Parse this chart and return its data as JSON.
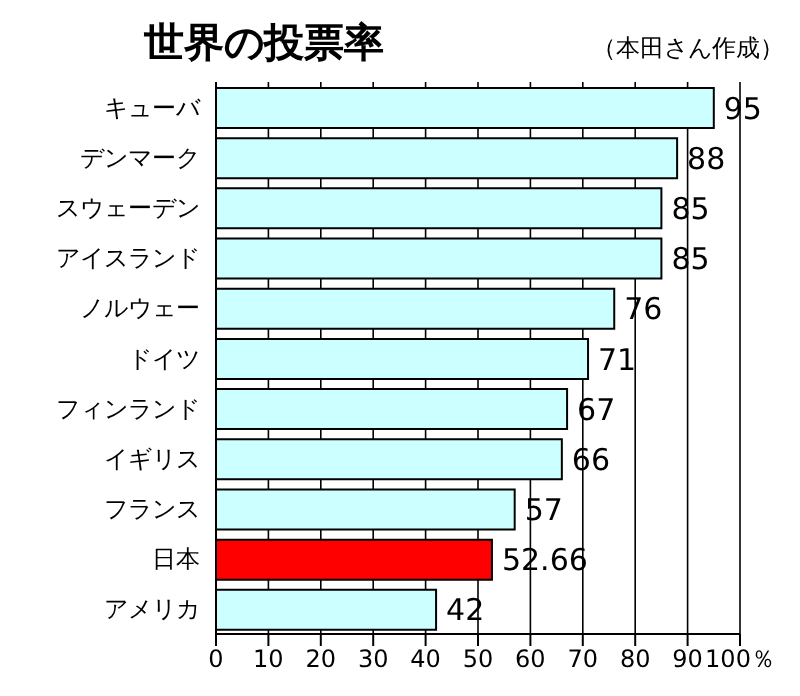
{
  "chart_data": {
    "type": "bar",
    "orientation": "horizontal",
    "title": "世界の投票率",
    "annotations": [
      "（本田さん作成）"
    ],
    "categories": [
      "キューバ",
      "デンマーク",
      "スウェーデン",
      "アイスランド",
      "ノルウェー",
      "ドイツ",
      "フィンランド",
      "イギリス",
      "フランス",
      "日本",
      "アメリカ"
    ],
    "values": [
      95,
      88,
      85,
      85,
      76,
      71,
      67,
      66,
      57,
      52.66,
      42
    ],
    "colors": [
      "#ccffff",
      "#ccffff",
      "#ccffff",
      "#ccffff",
      "#ccffff",
      "#ccffff",
      "#ccffff",
      "#ccffff",
      "#ccffff",
      "#ff0000",
      "#ccffff"
    ],
    "xlim": [
      0,
      100
    ],
    "xticks": [
      0,
      10,
      20,
      30,
      40,
      50,
      60,
      70,
      80,
      90,
      {
        "value": 100,
        "label": "100％"
      }
    ],
    "grid": "x",
    "data_labels": true
  }
}
